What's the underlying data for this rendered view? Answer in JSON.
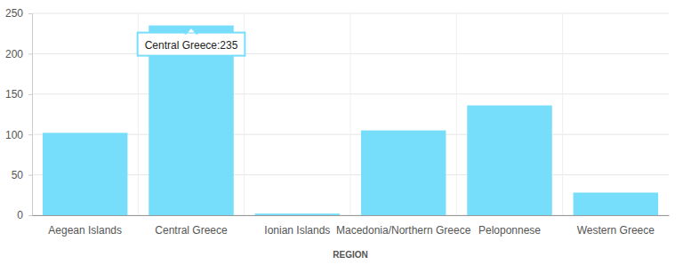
{
  "chart_data": {
    "type": "bar",
    "x_label": "REGION",
    "categories": [
      "Aegean Islands",
      "Central Greece",
      "Ionian Islands",
      "Macedonia/Northern Greece",
      "Peloponnese",
      "Western Greece"
    ],
    "values": [
      102,
      235,
      2,
      105,
      136,
      28
    ],
    "color": "#76ddfb",
    "ylim": [
      0,
      250
    ],
    "yticks": [
      0,
      50,
      100,
      150,
      200,
      250
    ],
    "grid": true,
    "annotations": [
      {
        "text": "Central Greece:235",
        "x": "Central Greece",
        "y": 235
      }
    ]
  }
}
